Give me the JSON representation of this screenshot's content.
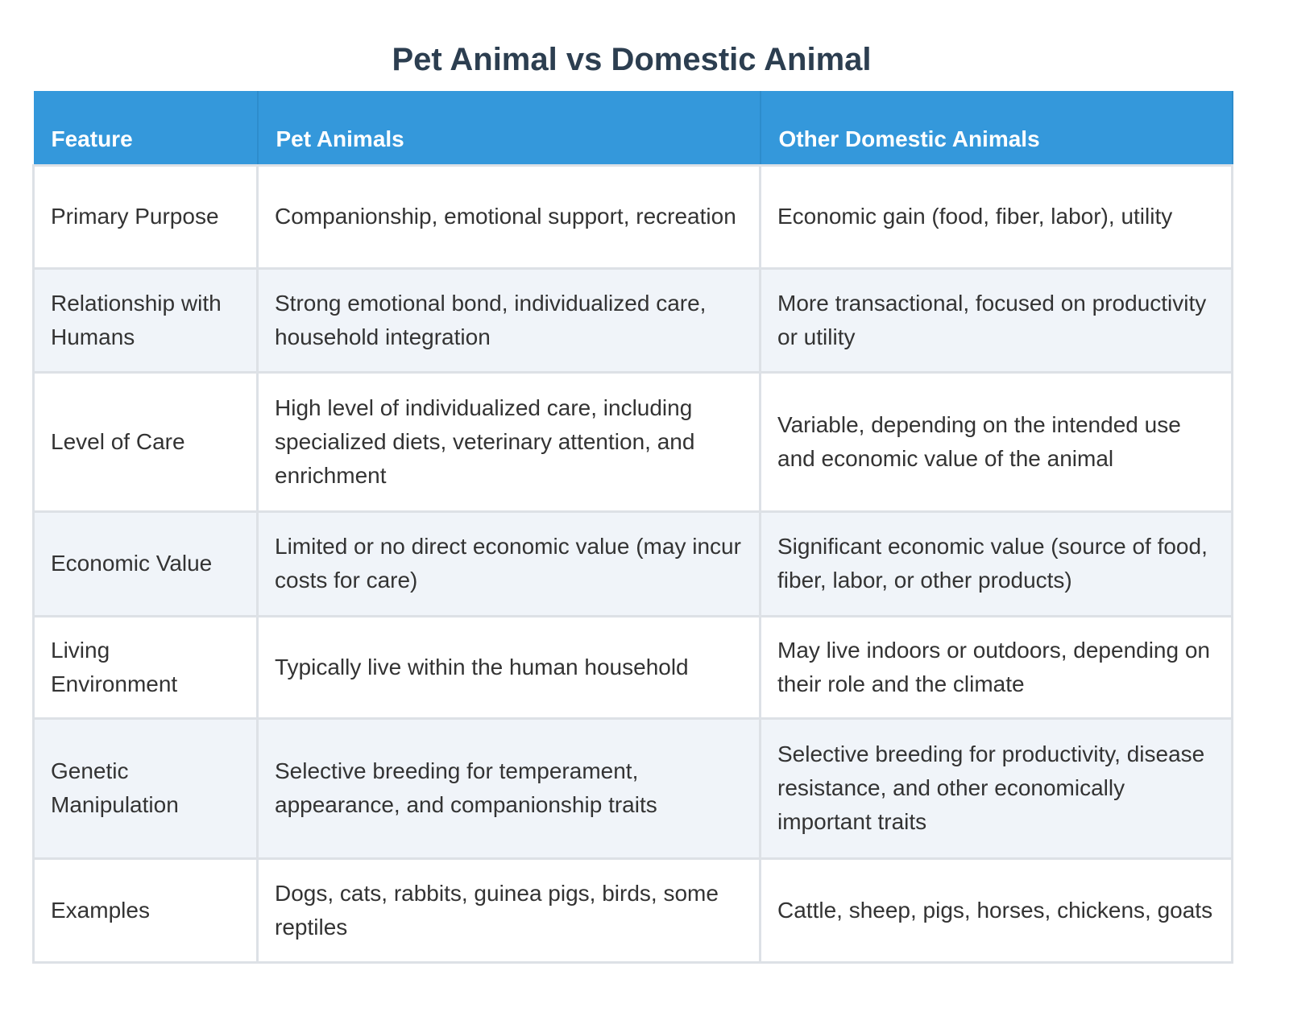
{
  "title": "Pet Animal vs Domestic Animal",
  "table": {
    "headers": [
      "Feature",
      "Pet Animals",
      "Other Domestic Animals"
    ],
    "rows": [
      [
        "Primary Purpose",
        "Companionship, emotional support, recreation",
        "Economic gain (food, fiber, labor), utility"
      ],
      [
        "Relationship with Humans",
        "Strong emotional bond, individualized care, household integration",
        "More transactional, focused on productivity or utility"
      ],
      [
        "Level of Care",
        "High level of individualized care, including specialized diets, veterinary attention, and enrichment",
        "Variable, depending on the intended use and economic value of the animal"
      ],
      [
        "Economic Value",
        "Limited or no direct economic value (may incur costs for care)",
        "Significant economic value (source of food, fiber, labor, or other products)"
      ],
      [
        "Living Environment",
        "Typically live within the human household",
        "May live indoors or outdoors, depending on their role and the climate"
      ],
      [
        "Genetic Manipulation",
        "Selective breeding for temperament, appearance, and companionship traits",
        "Selective breeding for productivity, disease resistance, and other economically important traits"
      ],
      [
        "Examples",
        "Dogs, cats, rabbits, guinea pigs, birds, some reptiles",
        "Cattle, sheep, pigs, horses, chickens, goats"
      ]
    ]
  }
}
